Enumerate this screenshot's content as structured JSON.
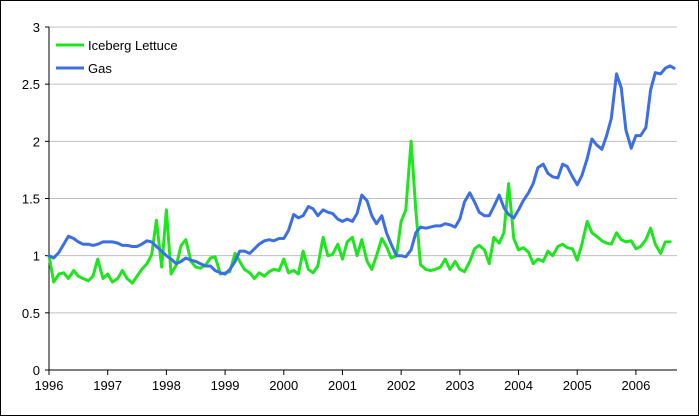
{
  "chart_data": {
    "type": "line",
    "title": "",
    "xlabel": "",
    "ylabel": "",
    "xlim": [
      1996.0,
      2006.7
    ],
    "ylim": [
      0,
      3
    ],
    "yticks": [
      "0",
      "0.5",
      "1",
      "1.5",
      "2",
      "2.5",
      "3"
    ],
    "xticks": [
      "1996",
      "1997",
      "1998",
      "1999",
      "2000",
      "2001",
      "2002",
      "2003",
      "2004",
      "2005",
      "2006"
    ],
    "grid": "horizontal",
    "legend_position": "top-left",
    "series": [
      {
        "name": "Iceberg Lettuce",
        "color": "#1ee61e",
        "x": [
          1996.0,
          1996.08,
          1996.17,
          1996.25,
          1996.33,
          1996.42,
          1996.5,
          1996.58,
          1996.67,
          1996.75,
          1996.83,
          1996.92,
          1997.0,
          1997.08,
          1997.17,
          1997.25,
          1997.33,
          1997.42,
          1997.5,
          1997.58,
          1997.67,
          1997.75,
          1997.83,
          1997.92,
          1998.0,
          1998.08,
          1998.17,
          1998.25,
          1998.33,
          1998.42,
          1998.5,
          1998.58,
          1998.67,
          1998.75,
          1998.83,
          1998.92,
          1999.0,
          1999.08,
          1999.17,
          1999.25,
          1999.33,
          1999.42,
          1999.5,
          1999.58,
          1999.67,
          1999.75,
          1999.83,
          1999.92,
          2000.0,
          2000.08,
          2000.17,
          2000.25,
          2000.33,
          2000.42,
          2000.5,
          2000.58,
          2000.67,
          2000.75,
          2000.83,
          2000.92,
          2001.0,
          2001.08,
          2001.17,
          2001.25,
          2001.33,
          2001.42,
          2001.5,
          2001.58,
          2001.67,
          2001.75,
          2001.83,
          2001.92,
          2002.0,
          2002.08,
          2002.17,
          2002.25,
          2002.33,
          2002.42,
          2002.5,
          2002.58,
          2002.67,
          2002.75,
          2002.83,
          2002.92,
          2003.0,
          2003.08,
          2003.17,
          2003.25,
          2003.33,
          2003.42,
          2003.5,
          2003.58,
          2003.67,
          2003.75,
          2003.83,
          2003.92,
          2004.0,
          2004.08,
          2004.17,
          2004.25,
          2004.33,
          2004.42,
          2004.5,
          2004.58,
          2004.67,
          2004.75,
          2004.83,
          2004.92,
          2005.0,
          2005.08,
          2005.17,
          2005.25,
          2005.33,
          2005.42,
          2005.5,
          2005.58,
          2005.67,
          2005.75,
          2005.83,
          2005.92,
          2006.0,
          2006.08,
          2006.17,
          2006.25,
          2006.33,
          2006.42,
          2006.5,
          2006.58
        ],
        "y": [
          1.0,
          0.77,
          0.84,
          0.85,
          0.8,
          0.87,
          0.82,
          0.8,
          0.78,
          0.82,
          0.97,
          0.8,
          0.84,
          0.77,
          0.8,
          0.87,
          0.8,
          0.76,
          0.82,
          0.88,
          0.93,
          1.01,
          1.31,
          0.9,
          1.4,
          0.84,
          0.92,
          1.09,
          1.14,
          0.95,
          0.9,
          0.89,
          0.92,
          0.98,
          0.99,
          0.84,
          0.85,
          0.86,
          1.02,
          0.95,
          0.88,
          0.85,
          0.8,
          0.85,
          0.82,
          0.86,
          0.88,
          0.87,
          0.97,
          0.85,
          0.87,
          0.84,
          1.04,
          0.88,
          0.85,
          0.91,
          1.16,
          1.0,
          1.01,
          1.1,
          0.97,
          1.12,
          1.16,
          1.0,
          1.14,
          0.95,
          0.88,
          1.0,
          1.15,
          1.08,
          0.98,
          1.0,
          1.3,
          1.4,
          2.0,
          1.4,
          0.92,
          0.88,
          0.87,
          0.88,
          0.9,
          0.97,
          0.88,
          0.95,
          0.88,
          0.86,
          0.95,
          1.06,
          1.09,
          1.05,
          0.93,
          1.16,
          1.11,
          1.2,
          1.63,
          1.15,
          1.05,
          1.07,
          1.03,
          0.93,
          0.97,
          0.95,
          1.04,
          1.0,
          1.08,
          1.1,
          1.07,
          1.06,
          0.96,
          1.1,
          1.3,
          1.2,
          1.17,
          1.13,
          1.11,
          1.1,
          1.2,
          1.14,
          1.12,
          1.13,
          1.06,
          1.08,
          1.14,
          1.24,
          1.1,
          1.02,
          1.12,
          1.12
        ]
      },
      {
        "name": "Gas",
        "color": "#3c6ee6",
        "x": [
          1996.0,
          1996.08,
          1996.17,
          1996.25,
          1996.33,
          1996.42,
          1996.5,
          1996.58,
          1996.67,
          1996.75,
          1996.83,
          1996.92,
          1997.0,
          1997.08,
          1997.17,
          1997.25,
          1997.33,
          1997.42,
          1997.5,
          1997.58,
          1997.67,
          1997.75,
          1997.83,
          1997.92,
          1998.0,
          1998.08,
          1998.17,
          1998.25,
          1998.33,
          1998.42,
          1998.5,
          1998.58,
          1998.67,
          1998.75,
          1998.83,
          1998.92,
          1999.0,
          1999.08,
          1999.17,
          1999.25,
          1999.33,
          1999.42,
          1999.5,
          1999.58,
          1999.67,
          1999.75,
          1999.83,
          1999.92,
          2000.0,
          2000.08,
          2000.17,
          2000.25,
          2000.33,
          2000.42,
          2000.5,
          2000.58,
          2000.67,
          2000.75,
          2000.83,
          2000.92,
          2001.0,
          2001.08,
          2001.17,
          2001.25,
          2001.33,
          2001.42,
          2001.5,
          2001.58,
          2001.67,
          2001.75,
          2001.83,
          2001.92,
          2002.0,
          2002.08,
          2002.17,
          2002.25,
          2002.33,
          2002.42,
          2002.5,
          2002.58,
          2002.67,
          2002.75,
          2002.83,
          2002.92,
          2003.0,
          2003.08,
          2003.17,
          2003.25,
          2003.33,
          2003.42,
          2003.5,
          2003.58,
          2003.67,
          2003.75,
          2003.83,
          2003.92,
          2004.0,
          2004.08,
          2004.17,
          2004.25,
          2004.33,
          2004.42,
          2004.5,
          2004.58,
          2004.67,
          2004.75,
          2004.83,
          2004.92,
          2005.0,
          2005.08,
          2005.17,
          2005.25,
          2005.33,
          2005.42,
          2005.5,
          2005.58,
          2005.67,
          2005.75,
          2005.83,
          2005.92,
          2006.0,
          2006.08,
          2006.17,
          2006.25,
          2006.33,
          2006.42,
          2006.5,
          2006.58,
          2006.65
        ],
        "y": [
          1.0,
          0.98,
          1.03,
          1.1,
          1.17,
          1.15,
          1.12,
          1.1,
          1.1,
          1.09,
          1.1,
          1.12,
          1.12,
          1.12,
          1.11,
          1.09,
          1.09,
          1.08,
          1.08,
          1.1,
          1.13,
          1.12,
          1.08,
          1.04,
          1.0,
          0.97,
          0.93,
          0.95,
          0.98,
          0.96,
          0.95,
          0.93,
          0.91,
          0.91,
          0.87,
          0.85,
          0.84,
          0.88,
          0.95,
          1.04,
          1.04,
          1.02,
          1.06,
          1.1,
          1.13,
          1.14,
          1.13,
          1.15,
          1.15,
          1.22,
          1.36,
          1.33,
          1.35,
          1.43,
          1.41,
          1.35,
          1.4,
          1.38,
          1.37,
          1.32,
          1.3,
          1.32,
          1.3,
          1.37,
          1.53,
          1.48,
          1.35,
          1.28,
          1.35,
          1.2,
          1.1,
          1.0,
          1.0,
          0.99,
          1.05,
          1.2,
          1.25,
          1.24,
          1.25,
          1.26,
          1.26,
          1.28,
          1.27,
          1.25,
          1.32,
          1.47,
          1.55,
          1.47,
          1.38,
          1.35,
          1.35,
          1.43,
          1.53,
          1.42,
          1.36,
          1.33,
          1.4,
          1.48,
          1.55,
          1.63,
          1.77,
          1.8,
          1.72,
          1.69,
          1.68,
          1.8,
          1.78,
          1.69,
          1.62,
          1.7,
          1.85,
          2.02,
          1.97,
          1.93,
          2.05,
          2.2,
          2.59,
          2.47,
          2.1,
          1.94,
          2.05,
          2.05,
          2.12,
          2.45,
          2.6,
          2.59,
          2.64,
          2.66,
          2.64
        ]
      }
    ]
  }
}
